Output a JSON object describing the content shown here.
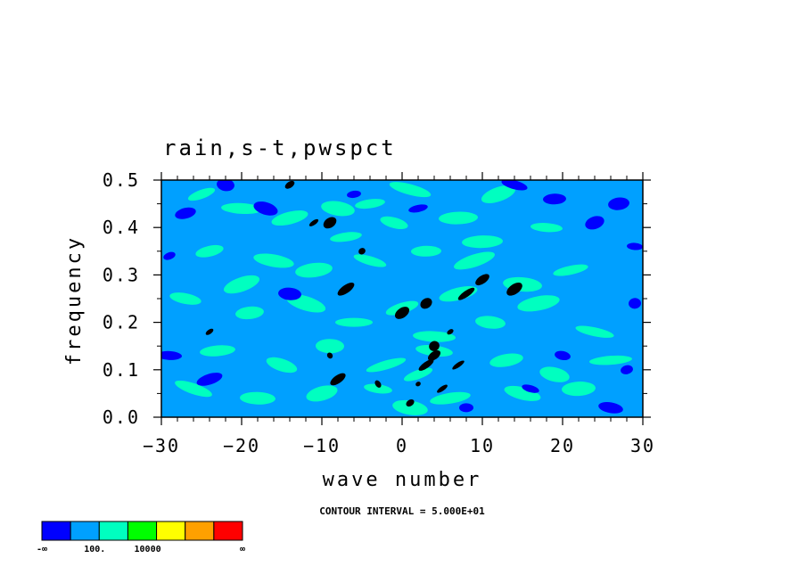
{
  "chart_data": {
    "type": "heatmap",
    "title": "rain,s-t,pwspct",
    "xlabel": "wave number",
    "ylabel": "frequency",
    "xlim": [
      -30,
      30
    ],
    "ylim": [
      0.0,
      0.5
    ],
    "xticks": [
      "-30",
      "-20",
      "-10",
      "0",
      "10",
      "20",
      "30"
    ],
    "yticks": [
      "0.0",
      "0.1",
      "0.2",
      "0.3",
      "0.4",
      "0.5"
    ],
    "grid": false,
    "background_level": "100. to 10000 (light blue)",
    "contour_interval_text": "CONTOUR INTERVAL = 5.000E+01",
    "colorbar": {
      "colors": [
        "#0000ff",
        "#00a0ff",
        "#00ffc0",
        "#00ff00",
        "#ffff00",
        "#ffa000",
        "#ff0000"
      ],
      "labels": [
        "-∞",
        "100.",
        "10000",
        "∞"
      ]
    },
    "patches": {
      "green": [
        {
          "x": -25,
          "y": 0.47
        },
        {
          "x": -20,
          "y": 0.44
        },
        {
          "x": -14,
          "y": 0.42
        },
        {
          "x": -8,
          "y": 0.44
        },
        {
          "x": -4,
          "y": 0.45
        },
        {
          "x": 1,
          "y": 0.48
        },
        {
          "x": 7,
          "y": 0.42
        },
        {
          "x": 12,
          "y": 0.47
        },
        {
          "x": 18,
          "y": 0.4
        },
        {
          "x": -24,
          "y": 0.35
        },
        {
          "x": -16,
          "y": 0.33
        },
        {
          "x": -11,
          "y": 0.31
        },
        {
          "x": -4,
          "y": 0.33
        },
        {
          "x": 3,
          "y": 0.35
        },
        {
          "x": 9,
          "y": 0.33
        },
        {
          "x": 15,
          "y": 0.28
        },
        {
          "x": 21,
          "y": 0.31
        },
        {
          "x": -27,
          "y": 0.25
        },
        {
          "x": -19,
          "y": 0.22
        },
        {
          "x": -12,
          "y": 0.24
        },
        {
          "x": -6,
          "y": 0.2
        },
        {
          "x": 0,
          "y": 0.23
        },
        {
          "x": 11,
          "y": 0.2
        },
        {
          "x": 17,
          "y": 0.24
        },
        {
          "x": 24,
          "y": 0.18
        },
        {
          "x": -23,
          "y": 0.14
        },
        {
          "x": -15,
          "y": 0.11
        },
        {
          "x": -9,
          "y": 0.15
        },
        {
          "x": -2,
          "y": 0.11
        },
        {
          "x": 4,
          "y": 0.14
        },
        {
          "x": 13,
          "y": 0.12
        },
        {
          "x": 19,
          "y": 0.09
        },
        {
          "x": 26,
          "y": 0.12
        },
        {
          "x": -26,
          "y": 0.06
        },
        {
          "x": -18,
          "y": 0.04
        },
        {
          "x": -10,
          "y": 0.05
        },
        {
          "x": -3,
          "y": 0.06
        },
        {
          "x": 6,
          "y": 0.04
        },
        {
          "x": 15,
          "y": 0.05
        },
        {
          "x": 22,
          "y": 0.06
        },
        {
          "x": 2,
          "y": 0.09
        },
        {
          "x": 4,
          "y": 0.17
        },
        {
          "x": 7,
          "y": 0.26
        },
        {
          "x": 1,
          "y": 0.02
        },
        {
          "x": -7,
          "y": 0.38
        },
        {
          "x": -1,
          "y": 0.41
        },
        {
          "x": 10,
          "y": 0.37
        },
        {
          "x": -20,
          "y": 0.28
        }
      ],
      "blue": [
        {
          "x": -29,
          "y": 0.34
        },
        {
          "x": -29,
          "y": 0.13
        },
        {
          "x": -27,
          "y": 0.43
        },
        {
          "x": -22,
          "y": 0.49
        },
        {
          "x": -6,
          "y": 0.47
        },
        {
          "x": 14,
          "y": 0.49
        },
        {
          "x": 19,
          "y": 0.46
        },
        {
          "x": 24,
          "y": 0.41
        },
        {
          "x": 29,
          "y": 0.36
        },
        {
          "x": 28,
          "y": 0.1
        },
        {
          "x": 26,
          "y": 0.02
        },
        {
          "x": 27,
          "y": 0.45
        },
        {
          "x": 16,
          "y": 0.06
        },
        {
          "x": 8,
          "y": 0.02
        },
        {
          "x": -24,
          "y": 0.08
        },
        {
          "x": -14,
          "y": 0.26
        },
        {
          "x": 2,
          "y": 0.44
        },
        {
          "x": 20,
          "y": 0.13
        },
        {
          "x": 29,
          "y": 0.24
        },
        {
          "x": -17,
          "y": 0.44
        }
      ],
      "black": [
        {
          "x": 2,
          "y": 0.07
        },
        {
          "x": 3,
          "y": 0.11
        },
        {
          "x": 4,
          "y": 0.13
        },
        {
          "x": 4,
          "y": 0.15
        },
        {
          "x": 6,
          "y": 0.18
        },
        {
          "x": 8,
          "y": 0.26
        },
        {
          "x": 10,
          "y": 0.29
        },
        {
          "x": 3,
          "y": 0.24
        },
        {
          "x": -24,
          "y": 0.18
        },
        {
          "x": -9,
          "y": 0.13
        },
        {
          "x": -8,
          "y": 0.08
        },
        {
          "x": -9,
          "y": 0.41
        },
        {
          "x": -11,
          "y": 0.41
        },
        {
          "x": -5,
          "y": 0.35
        },
        {
          "x": -7,
          "y": 0.27
        },
        {
          "x": 0,
          "y": 0.22
        },
        {
          "x": 5,
          "y": 0.06
        },
        {
          "x": 1,
          "y": 0.03
        },
        {
          "x": -3,
          "y": 0.07
        },
        {
          "x": 14,
          "y": 0.27
        },
        {
          "x": 7,
          "y": 0.11
        },
        {
          "x": -14,
          "y": 0.49
        }
      ]
    }
  }
}
